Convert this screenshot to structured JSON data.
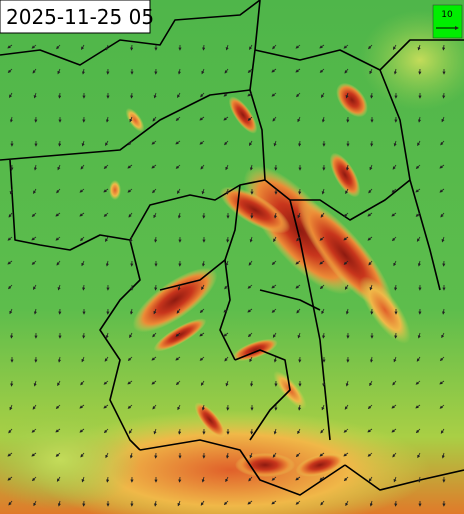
{
  "map": {
    "timestamp": "2025-11-25 05",
    "wind_legend": {
      "label": "10"
    }
  }
}
